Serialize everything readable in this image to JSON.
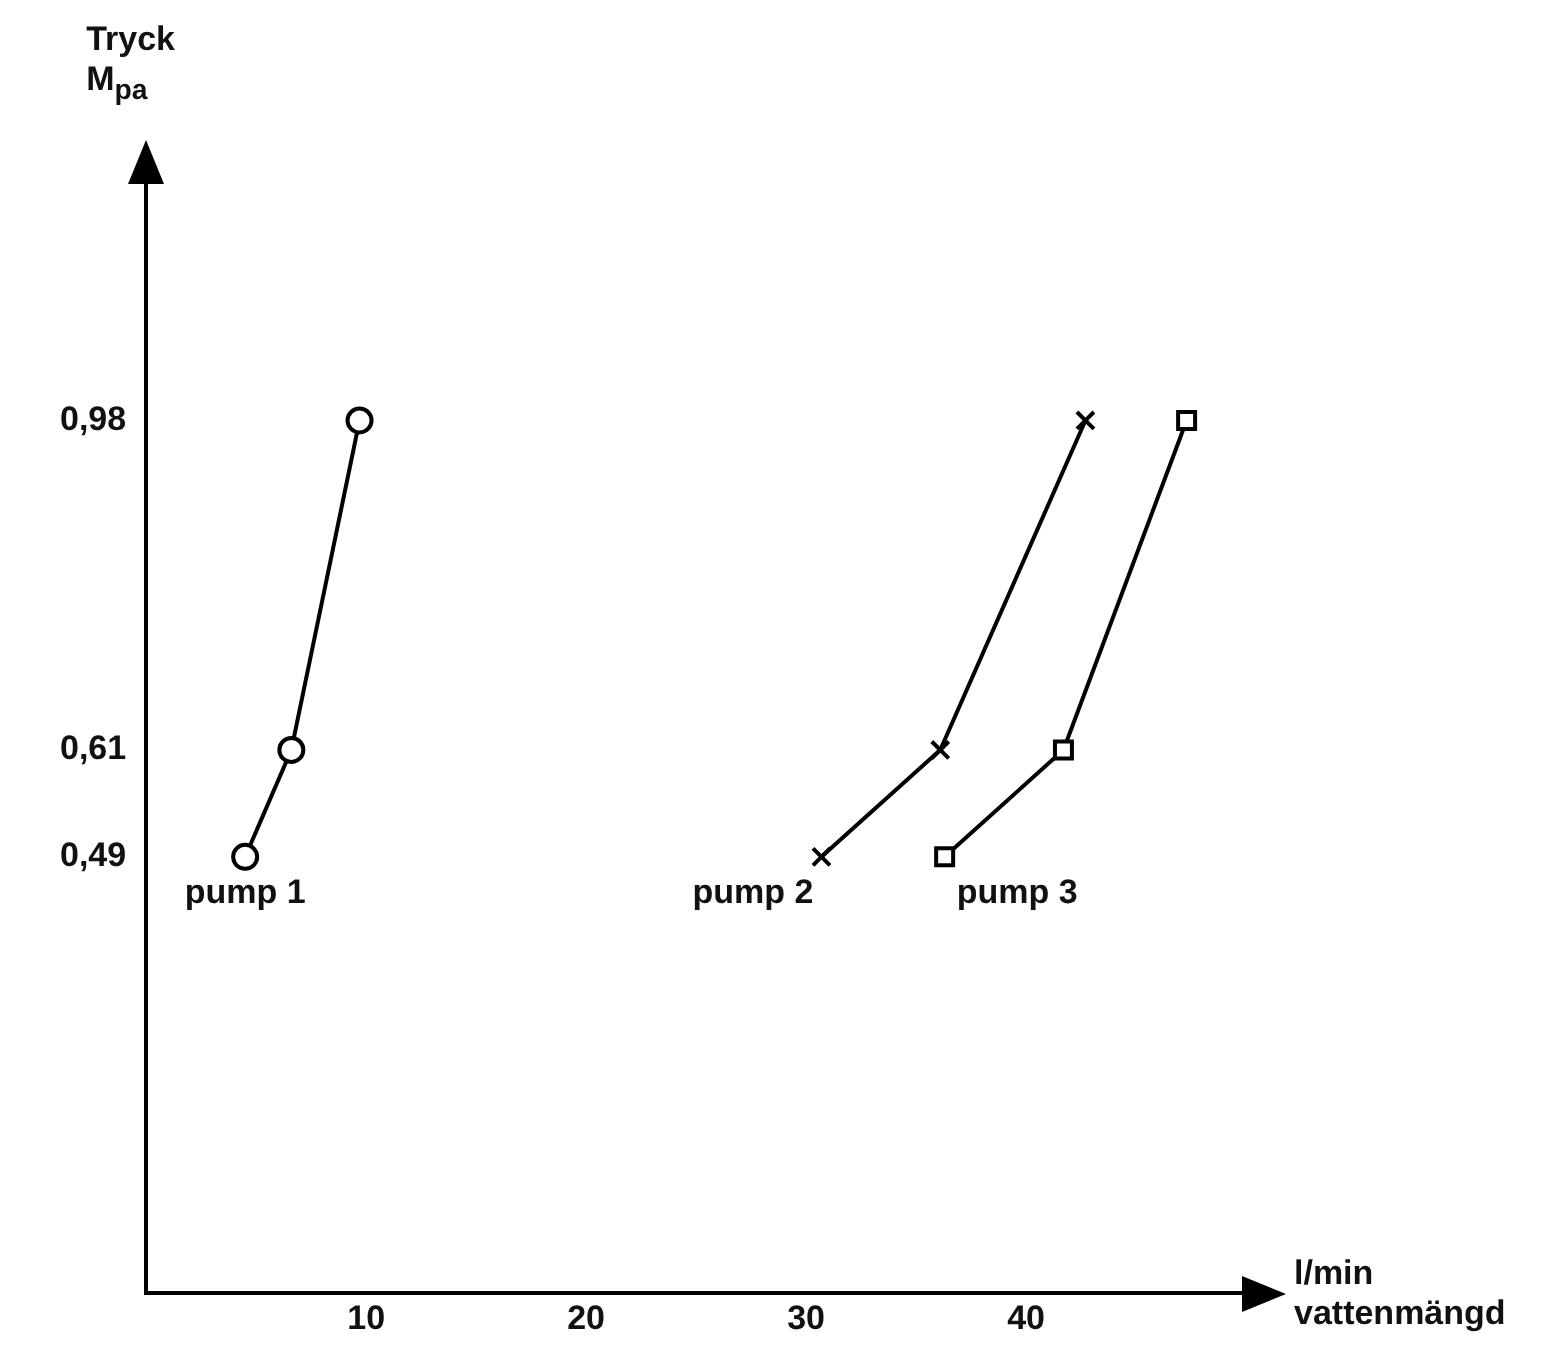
{
  "chart_data": {
    "type": "line",
    "xlabel": "l/min vattenmängd",
    "ylabel": "Tryck M$_{pa}$",
    "xlim": [
      0,
      50
    ],
    "xticks": [
      10,
      20,
      30,
      40
    ],
    "ylim": [
      0,
      1.25
    ],
    "yticks": [
      {
        "value": 0.49,
        "label": "0,49"
      },
      {
        "value": 0.61,
        "label": "0,61"
      },
      {
        "value": 0.98,
        "label": "0,98"
      }
    ],
    "grid": false,
    "legend": false,
    "line_style": "solid",
    "series": [
      {
        "name": "pump 1",
        "color": "#000000",
        "marker": "circle",
        "x": [
          4.5,
          6.6,
          9.7
        ],
        "values": [
          0.49,
          0.61,
          0.98
        ]
      },
      {
        "name": "pump 2",
        "color": "#000000",
        "marker": "cross",
        "x": [
          30.7,
          36.1,
          42.7
        ],
        "values": [
          0.49,
          0.61,
          0.98
        ]
      },
      {
        "name": "pump 3",
        "color": "#000000",
        "marker": "square",
        "x": [
          36.3,
          41.7,
          47.3
        ],
        "values": [
          0.49,
          0.61,
          0.98
        ]
      }
    ]
  }
}
